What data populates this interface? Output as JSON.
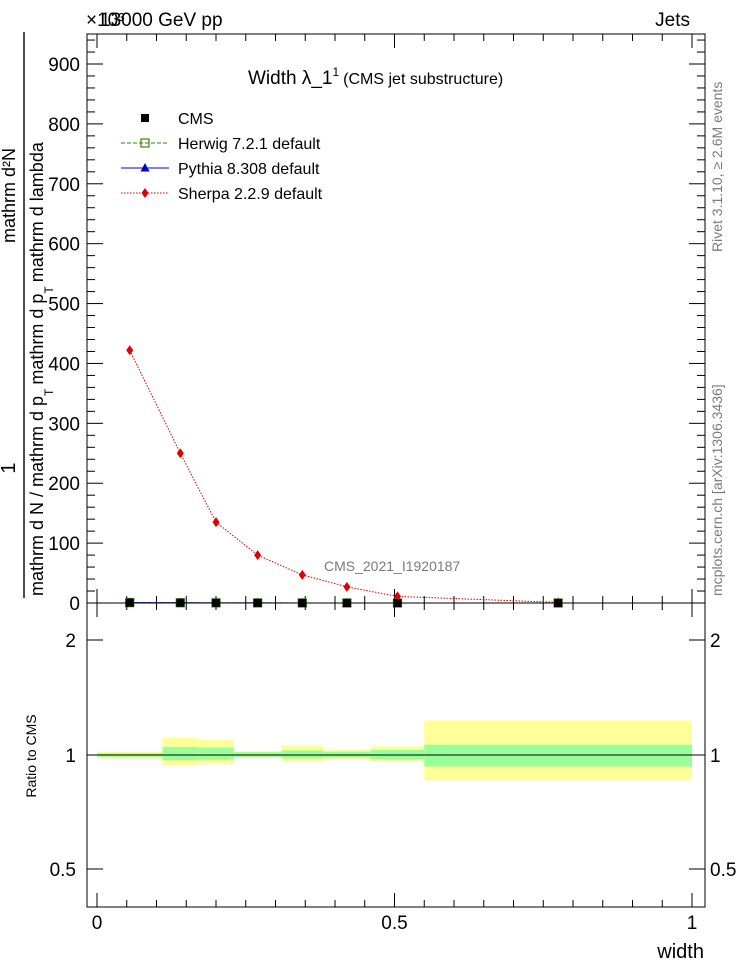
{
  "header": {
    "left_label": "13000 GeV pp",
    "right_label": "Jets",
    "exponent_label": "×10³"
  },
  "side_labels": {
    "rivet": "Rivet 3.1.10, ≥ 2.6M events",
    "mcplots": "mcplots.cern.ch [arXiv:1306.3436]"
  },
  "watermark": "CMS_2021_I1920187",
  "chart_data": [
    {
      "type": "line",
      "title": "Width λ_1",
      "title_superscript": "1",
      "subtitle": "(CMS jet substructure)",
      "ylabel_numerator": "1",
      "ylabel_parts": [
        "mathrm d N / mathrm d p",
        "T",
        "mathrm d p",
        "T",
        "mathrm d lambda",
        "mathrm d²N"
      ],
      "xlim": [
        0,
        1
      ],
      "ylim": [
        0,
        960
      ],
      "y_ticks": [
        0,
        100,
        200,
        300,
        400,
        500,
        600,
        700,
        800,
        900
      ],
      "y_tick_labels": [
        "0",
        "100",
        "200",
        "300",
        "400",
        "500",
        "600",
        "700",
        "800",
        "900"
      ],
      "legend_position": "top-left",
      "series": [
        {
          "name": "CMS",
          "color": "#000000",
          "marker": "square",
          "x": [
            0.055,
            0.14,
            0.2,
            0.27,
            0.345,
            0.42,
            0.505,
            0.775
          ],
          "y": [
            0.6,
            0.4,
            0.25,
            0.15,
            0.08,
            0.05,
            0.02,
            0.005
          ]
        },
        {
          "name": "Herwig 7.2.1 default",
          "color": "#2e8b00",
          "marker": "open-square",
          "x": [
            0.055,
            0.14,
            0.2,
            0.27,
            0.345,
            0.42,
            0.505,
            0.775
          ],
          "y": [
            0.6,
            0.4,
            0.25,
            0.15,
            0.08,
            0.05,
            0.02,
            0.005
          ]
        },
        {
          "name": "Pythia 8.308 default",
          "color": "#0000cc",
          "marker": "triangle",
          "x": [
            0.055,
            0.14,
            0.2,
            0.27,
            0.345,
            0.42,
            0.505,
            0.775
          ],
          "y": [
            0.6,
            0.4,
            0.25,
            0.15,
            0.08,
            0.05,
            0.02,
            0.005
          ]
        },
        {
          "name": "Sherpa 2.2.9 default",
          "color": "#dd0000",
          "marker": "diamond",
          "x": [
            0.055,
            0.14,
            0.2,
            0.27,
            0.345,
            0.42,
            0.505,
            0.775
          ],
          "y": [
            422,
            250,
            135,
            80,
            47,
            27,
            11,
            1
          ]
        }
      ]
    },
    {
      "type": "area",
      "ylabel": "Ratio to CMS",
      "xlabel": "width",
      "xlim": [
        0,
        1
      ],
      "ylim": [
        0.35,
        2.3
      ],
      "x_ticks": [
        0,
        0.5,
        1
      ],
      "x_tick_labels": [
        "0",
        "0.5",
        "1"
      ],
      "y_ticks": [
        0.5,
        1,
        2
      ],
      "y_tick_labels": [
        "0.5",
        "1",
        "2"
      ],
      "reference_line": 1,
      "bands": [
        {
          "x0": 0.0,
          "x1": 0.11,
          "stat": [
            0.985,
            1.015
          ],
          "total": [
            0.97,
            1.03
          ]
        },
        {
          "x0": 0.11,
          "x1": 0.17,
          "stat": [
            0.955,
            1.07
          ],
          "total": [
            0.91,
            1.15
          ]
        },
        {
          "x0": 0.17,
          "x1": 0.23,
          "stat": [
            0.96,
            1.065
          ],
          "total": [
            0.92,
            1.13
          ]
        },
        {
          "x0": 0.23,
          "x1": 0.31,
          "stat": [
            0.985,
            1.025
          ],
          "total": [
            0.975,
            1.035
          ]
        },
        {
          "x0": 0.31,
          "x1": 0.38,
          "stat": [
            0.97,
            1.04
          ],
          "total": [
            0.94,
            1.085
          ]
        },
        {
          "x0": 0.38,
          "x1": 0.46,
          "stat": [
            0.98,
            1.03
          ],
          "total": [
            0.965,
            1.05
          ]
        },
        {
          "x0": 0.46,
          "x1": 0.55,
          "stat": [
            0.965,
            1.045
          ],
          "total": [
            0.94,
            1.075
          ]
        },
        {
          "x0": 0.55,
          "x1": 1.0,
          "stat": [
            0.9,
            1.09
          ],
          "total": [
            0.78,
            1.3
          ]
        }
      ],
      "colors": {
        "stat": "#99ff99",
        "total": "#ffff99"
      }
    }
  ]
}
